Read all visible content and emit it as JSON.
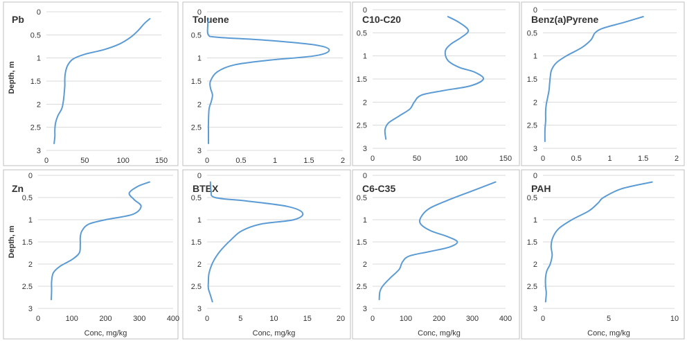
{
  "figure": {
    "line_color": "#5b9bd5",
    "grid_color": "#d9d9d9",
    "frame_color": "#bfbfbf",
    "y_axis_label": "Depth, m",
    "x_axis_label": "Conc, mg/kg"
  },
  "chart_data": [
    {
      "type": "line",
      "title": "Pb",
      "xlabel": "",
      "ylabel": "Depth, m",
      "xlim": [
        0,
        150
      ],
      "ylim": [
        0,
        3
      ],
      "xticks": [
        0,
        50,
        100,
        150
      ],
      "yticks": [
        0,
        0.5,
        1,
        1.5,
        2,
        2.5,
        3
      ],
      "xtick_labels": [
        "0",
        "50",
        "100",
        "150"
      ],
      "ytick_labels": [
        "0",
        "0.5",
        "1",
        "1.5",
        "2",
        "2.5",
        "3"
      ],
      "series": [
        {
          "name": "Pb",
          "x": [
            135,
            128,
            120,
            110,
            95,
            75,
            50,
            35,
            28,
            25,
            24,
            24,
            23,
            22,
            20,
            15,
            12,
            11,
            11,
            10
          ],
          "y": [
            0.15,
            0.25,
            0.4,
            0.55,
            0.7,
            0.82,
            0.92,
            1.02,
            1.15,
            1.3,
            1.45,
            1.6,
            1.8,
            1.95,
            2.1,
            2.25,
            2.4,
            2.55,
            2.7,
            2.85
          ]
        }
      ]
    },
    {
      "type": "line",
      "title": "Toluene",
      "xlabel": "",
      "ylabel": "",
      "xlim": [
        0,
        2
      ],
      "ylim": [
        0,
        3
      ],
      "xticks": [
        0,
        0.5,
        1,
        1.5,
        2
      ],
      "yticks": [
        0,
        0.5,
        1,
        1.5,
        2,
        2.5,
        3
      ],
      "xtick_labels": [
        "0",
        "0.5",
        "1",
        "1.5",
        "2"
      ],
      "ytick_labels": [
        "0",
        "0.5",
        "1",
        "1.5",
        "2",
        "2.5",
        "3"
      ],
      "series": [
        {
          "name": "Toluene",
          "x": [
            0.02,
            0.01,
            0.02,
            0.15,
            0.9,
            1.6,
            1.8,
            1.6,
            0.9,
            0.4,
            0.15,
            0.05,
            0.05,
            0.08,
            0.06,
            0.03,
            0.02,
            0.02,
            0.02
          ],
          "y": [
            0.15,
            0.3,
            0.5,
            0.55,
            0.62,
            0.72,
            0.83,
            0.95,
            1.05,
            1.15,
            1.3,
            1.5,
            1.65,
            1.8,
            1.95,
            2.1,
            2.4,
            2.6,
            2.85
          ]
        }
      ]
    },
    {
      "type": "line",
      "title": "C10-C20",
      "xlabel": "",
      "ylabel": "",
      "xlim": [
        0,
        150
      ],
      "ylim": [
        0,
        3
      ],
      "xticks": [
        0,
        50,
        100,
        150
      ],
      "yticks": [
        0,
        0.5,
        1,
        1.5,
        2,
        2.5,
        3
      ],
      "xtick_labels": [
        "0",
        "50",
        "100",
        "150"
      ],
      "ytick_labels": [
        "0",
        "0.5",
        "1",
        "1.5",
        "2",
        "2.5",
        "3"
      ],
      "series": [
        {
          "name": "C10-C20",
          "x": [
            85,
            98,
            108,
            100,
            88,
            82,
            85,
            98,
            115,
            125,
            110,
            80,
            55,
            47,
            42,
            30,
            18,
            14,
            15
          ],
          "y": [
            0.15,
            0.28,
            0.45,
            0.6,
            0.75,
            0.9,
            1.1,
            1.25,
            1.35,
            1.5,
            1.65,
            1.75,
            1.85,
            2.0,
            2.15,
            2.3,
            2.45,
            2.6,
            2.8
          ]
        }
      ]
    },
    {
      "type": "line",
      "title": "Benz(a)Pyrene",
      "xlabel": "",
      "ylabel": "",
      "xlim": [
        0,
        2
      ],
      "ylim": [
        0,
        3
      ],
      "xticks": [
        0,
        0.5,
        1,
        1.5,
        2
      ],
      "yticks": [
        0,
        0.5,
        1,
        1.5,
        2,
        2.5,
        3
      ],
      "xtick_labels": [
        "0",
        "0.5",
        "1",
        "1.5",
        "2"
      ],
      "ytick_labels": [
        "0",
        "0.5",
        "1",
        "1.5",
        "2",
        "2.5",
        "3"
      ],
      "series": [
        {
          "name": "Benz(a)Pyrene",
          "x": [
            1.5,
            1.2,
            0.9,
            0.78,
            0.72,
            0.58,
            0.35,
            0.2,
            0.13,
            0.11,
            0.1,
            0.09,
            0.07,
            0.05,
            0.04,
            0.04,
            0.03,
            0.03
          ],
          "y": [
            0.15,
            0.28,
            0.4,
            0.5,
            0.65,
            0.82,
            1.0,
            1.15,
            1.3,
            1.45,
            1.6,
            1.75,
            1.9,
            2.05,
            2.2,
            2.4,
            2.6,
            2.85
          ]
        }
      ]
    },
    {
      "type": "line",
      "title": "Zn",
      "xlabel": "Conc, mg/kg",
      "ylabel": "Depth, m",
      "xlim": [
        0,
        400
      ],
      "ylim": [
        0,
        3
      ],
      "xticks": [
        0,
        100,
        200,
        300,
        400
      ],
      "yticks": [
        0,
        0.5,
        1,
        1.5,
        2,
        2.5,
        3
      ],
      "xtick_labels": [
        "0",
        "100",
        "200",
        "300",
        "400"
      ],
      "ytick_labels": [
        "0",
        "0.5",
        "1",
        "1.5",
        "2",
        "2.5",
        "3"
      ],
      "series": [
        {
          "name": "Zn",
          "x": [
            330,
            295,
            270,
            285,
            305,
            280,
            200,
            150,
            130,
            125,
            125,
            122,
            100,
            65,
            45,
            40,
            40,
            39
          ],
          "y": [
            0.15,
            0.25,
            0.4,
            0.55,
            0.7,
            0.88,
            1.0,
            1.1,
            1.25,
            1.4,
            1.55,
            1.75,
            1.9,
            2.05,
            2.2,
            2.4,
            2.6,
            2.8
          ]
        }
      ]
    },
    {
      "type": "line",
      "title": "BTEX",
      "xlabel": "Conc, mg/kg",
      "ylabel": "",
      "xlim": [
        0,
        20
      ],
      "ylim": [
        0,
        3
      ],
      "xticks": [
        0,
        5,
        10,
        15,
        20
      ],
      "yticks": [
        0,
        0.5,
        1,
        1.5,
        2,
        2.5,
        3
      ],
      "xtick_labels": [
        "0",
        "5",
        "10",
        "15",
        "20"
      ],
      "ytick_labels": [
        "0",
        "0.5",
        "1",
        "1.5",
        "2",
        "2.5",
        "3"
      ],
      "series": [
        {
          "name": "BTEX",
          "x": [
            0.5,
            0.6,
            1.2,
            6,
            12,
            14.3,
            13,
            8,
            5.2,
            3.6,
            2,
            0.9,
            0.3,
            0.2,
            0.2,
            0.5,
            0.8
          ],
          "y": [
            0.15,
            0.35,
            0.5,
            0.58,
            0.7,
            0.85,
            1.0,
            1.1,
            1.25,
            1.45,
            1.7,
            1.95,
            2.2,
            2.4,
            2.55,
            2.7,
            2.85
          ]
        }
      ]
    },
    {
      "type": "line",
      "title": "C6-C35",
      "xlabel": "Conc, mg/kg",
      "ylabel": "",
      "xlim": [
        0,
        400
      ],
      "ylim": [
        0,
        3
      ],
      "xticks": [
        0,
        100,
        200,
        300,
        400
      ],
      "yticks": [
        0,
        0.5,
        1,
        1.5,
        2,
        2.5,
        3
      ],
      "xtick_labels": [
        "0",
        "100",
        "200",
        "300",
        "400"
      ],
      "ytick_labels": [
        "0",
        "0.5",
        "1",
        "1.5",
        "2",
        "2.5",
        "3"
      ],
      "series": [
        {
          "name": "C6-C35",
          "x": [
            370,
            300,
            230,
            170,
            145,
            145,
            175,
            225,
            255,
            230,
            170,
            110,
            90,
            80,
            55,
            32,
            22,
            20
          ],
          "y": [
            0.15,
            0.35,
            0.55,
            0.75,
            0.95,
            1.1,
            1.25,
            1.38,
            1.5,
            1.62,
            1.72,
            1.82,
            1.95,
            2.12,
            2.3,
            2.48,
            2.62,
            2.8
          ]
        }
      ]
    },
    {
      "type": "line",
      "title": "PAH",
      "xlabel": "Conc, mg/kg",
      "ylabel": "",
      "xlim": [
        0,
        10
      ],
      "ylim": [
        0,
        3
      ],
      "xticks": [
        0,
        5,
        10
      ],
      "yticks": [
        0,
        0.5,
        1,
        1.5,
        2,
        2.5,
        3
      ],
      "xtick_labels": [
        "0",
        "5",
        "10"
      ],
      "ytick_labels": [
        "0",
        "0.5",
        "1",
        "1.5",
        "2",
        "2.5",
        "3"
      ],
      "series": [
        {
          "name": "PAH",
          "x": [
            8.3,
            6,
            4.6,
            4.2,
            3.5,
            2.2,
            1.2,
            0.75,
            0.62,
            0.7,
            0.55,
            0.3,
            0.2,
            0.2,
            0.25,
            0.2
          ],
          "y": [
            0.15,
            0.3,
            0.5,
            0.62,
            0.8,
            1.0,
            1.2,
            1.4,
            1.6,
            1.8,
            2.0,
            2.15,
            2.3,
            2.5,
            2.65,
            2.85
          ]
        }
      ]
    }
  ]
}
